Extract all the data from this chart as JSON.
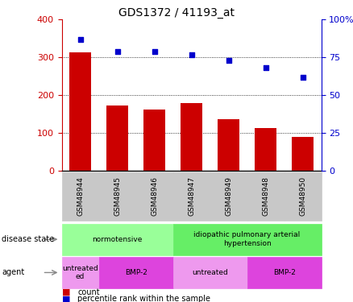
{
  "title": "GDS1372 / 41193_at",
  "samples": [
    "GSM48944",
    "GSM48945",
    "GSM48946",
    "GSM48947",
    "GSM48949",
    "GSM48948",
    "GSM48950"
  ],
  "count_values": [
    313,
    173,
    162,
    178,
    137,
    112,
    90
  ],
  "percentile_values": [
    87,
    79,
    79,
    77,
    73,
    68,
    62
  ],
  "bar_color": "#cc0000",
  "dot_color": "#0000cc",
  "left_ylim": [
    0,
    400
  ],
  "right_ylim": [
    0,
    100
  ],
  "left_yticks": [
    0,
    100,
    200,
    300,
    400
  ],
  "right_yticks": [
    0,
    25,
    50,
    75,
    100
  ],
  "right_yticklabels": [
    "0",
    "25",
    "50",
    "75",
    "100%"
  ],
  "grid_values": [
    100,
    200,
    300
  ],
  "disease_state_groups": [
    {
      "label": "normotensive",
      "start": 0,
      "end": 3,
      "color": "#99ff99"
    },
    {
      "label": "idiopathic pulmonary arterial\nhypertension",
      "start": 3,
      "end": 7,
      "color": "#66ee66"
    }
  ],
  "agent_groups": [
    {
      "label": "untreated\ned",
      "start": 0,
      "end": 1,
      "color": "#ee99ee"
    },
    {
      "label": "BMP-2",
      "start": 1,
      "end": 3,
      "color": "#dd44dd"
    },
    {
      "label": "untreated",
      "start": 3,
      "end": 5,
      "color": "#ee99ee"
    },
    {
      "label": "BMP-2",
      "start": 5,
      "end": 7,
      "color": "#dd44dd"
    }
  ],
  "legend_count_label": "count",
  "legend_percentile_label": "percentile rank within the sample",
  "disease_state_label": "disease state",
  "agent_label": "agent",
  "left_axis_color": "#cc0000",
  "right_axis_color": "#0000cc",
  "bg_color": "#ffffff",
  "sample_bg_color": "#c8c8c8"
}
